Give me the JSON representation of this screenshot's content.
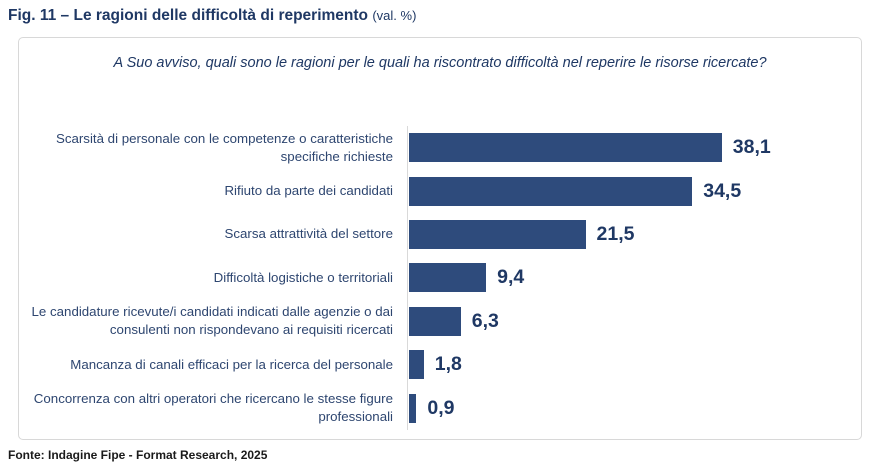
{
  "header": {
    "title": "Fig. 11 – Le ragioni delle difficoltà di reperimento",
    "title_suffix": "(val. %)"
  },
  "question": "A Suo avviso, quali sono le ragioni per le quali ha riscontrato difficoltà nel reperire le risorse ricercate?",
  "footer": {
    "source": "Fonte: Indagine Fipe - Format Research, 2025"
  },
  "colors": {
    "bar": "#2E4B7C",
    "title_text": "#1F3864",
    "category_label_text": "#2E4670",
    "frame_border": "#D8D8D8",
    "axis_line": "#D9D9D9"
  },
  "chart_data": {
    "type": "bar",
    "orientation": "horizontal",
    "title": "Fig. 11 – Le ragioni delle difficoltà di reperimento (val. %)",
    "subtitle_question": "A Suo avviso, quali sono le ragioni per le quali ha riscontrato difficoltà nel reperire le risorse ricercate?",
    "categories": [
      "Scarsità di personale con le competenze o caratteristiche specifiche richieste",
      "Rifiuto da parte dei candidati",
      "Scarsa attrattività del settore",
      "Difficoltà logistiche o territoriali",
      "Le candidature ricevute/i candidati indicati dalle agenzie o dai consulenti non rispondevano ai requisiti ricercati",
      "Mancanza di canali efficaci per la ricerca del personale",
      "Concorrenza con altri operatori che ricercano le stesse figure professionali"
    ],
    "values": [
      38.1,
      34.5,
      21.5,
      9.4,
      6.3,
      1.8,
      0.9
    ],
    "value_labels": [
      "38,1",
      "34,5",
      "21,5",
      "9,4",
      "6,3",
      "1,8",
      "0,9"
    ],
    "xlabel": "",
    "ylabel": "",
    "xlim": [
      0,
      42
    ],
    "grid": false,
    "legend": false,
    "value_label_position": "end-of-bar"
  }
}
